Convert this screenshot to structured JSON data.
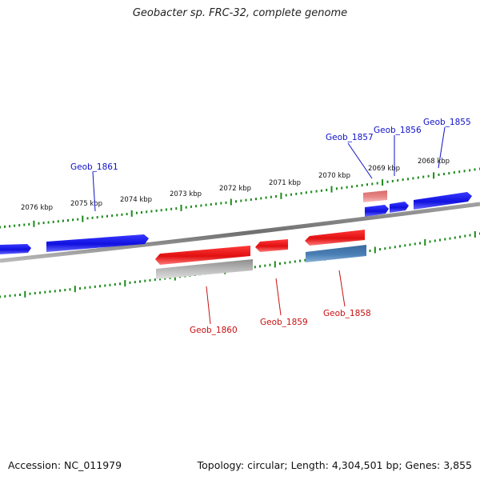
{
  "title": "Geobacter sp. FRC-32, complete genome",
  "footer": {
    "accession": "Accession: NC_011979",
    "summary": "Topology: circular; Length: 4,304,501 bp; Genes: 3,855"
  },
  "colors": {
    "forward_gene": "#1414e6",
    "reverse_gene": "#e61414",
    "pseudo_gene": "#e88080",
    "rna_gene": "#4a7fb5",
    "gray_feature": "#b4b4b4",
    "backbone": "#808080",
    "tick": "#1a8a1a",
    "forward_label": "#1010c8",
    "reverse_label": "#c81010"
  },
  "ruler": {
    "labels": [
      "2076 kbp",
      "2075 kbp",
      "2074 kbp",
      "2073 kbp",
      "2072 kbp",
      "2071 kbp",
      "2070 kbp",
      "2069 kbp",
      "2068 kbp"
    ]
  },
  "genes": {
    "forward_labels": [
      "Geob_1861",
      "Geob_1857",
      "Geob_1856",
      "Geob_1855"
    ],
    "reverse_labels": [
      "Geob_1860",
      "Geob_1859",
      "Geob_1858"
    ]
  }
}
